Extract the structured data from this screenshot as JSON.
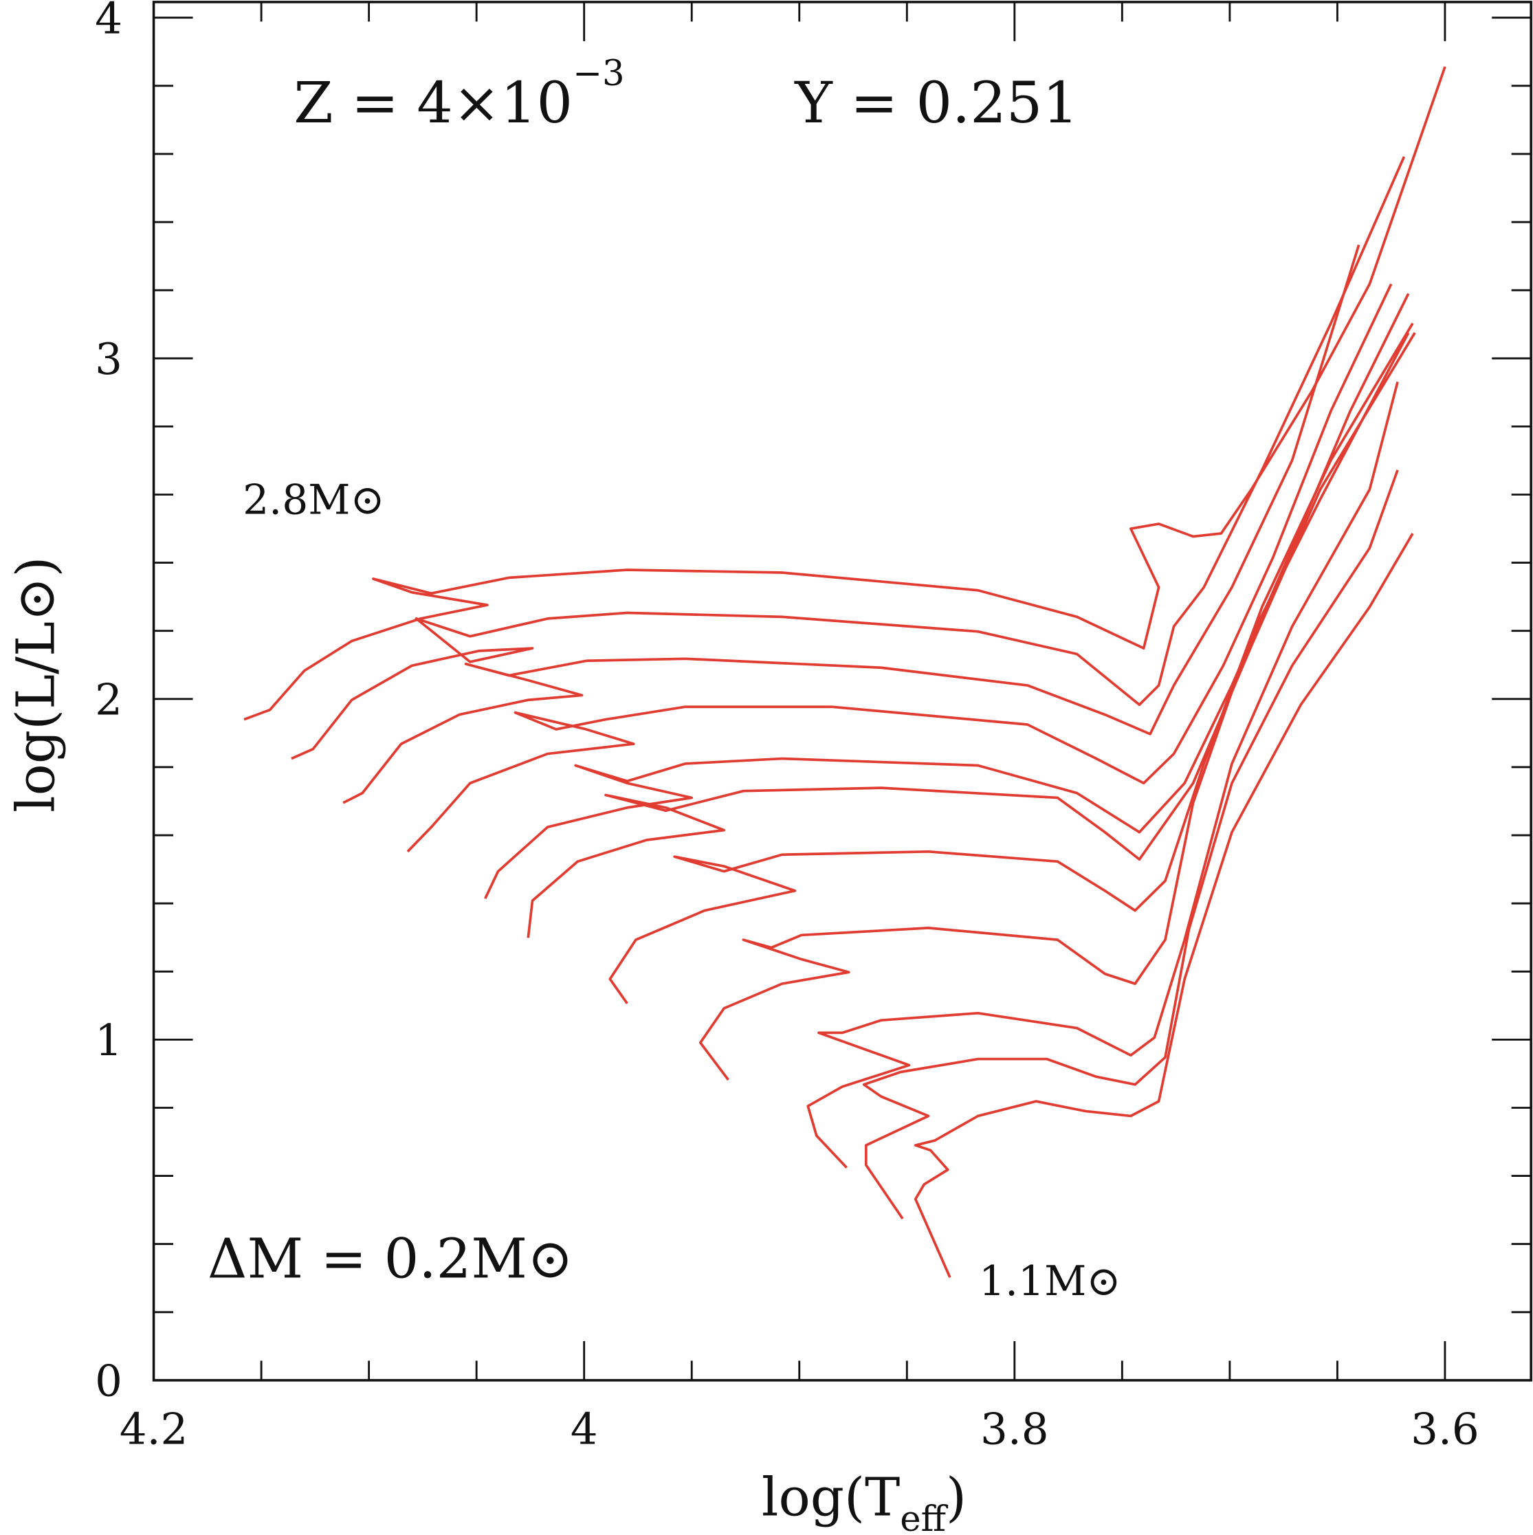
{
  "chart_data": {
    "type": "line",
    "xlabel": "log(T",
    "xlabel_sub": "eff",
    "xlabel_close": ")",
    "ylabel": "log(L/L⊙)",
    "xlim": [
      4.2,
      3.56
    ],
    "ylim": [
      0,
      4.046
    ],
    "x_reversed": true,
    "grid": false,
    "x_ticks": [
      "4.2",
      "4",
      "3.8",
      "3.6"
    ],
    "x_tick_values": [
      4.2,
      4.0,
      3.8,
      3.6
    ],
    "y_ticks": [
      "0",
      "1",
      "2",
      "3",
      "4"
    ],
    "y_tick_values": [
      0,
      1,
      2,
      3,
      4
    ],
    "line_color": "#e03c31",
    "annotations": {
      "z_text": "Z  =  4×10",
      "z_exp": "−3",
      "y_text": "Y  =  0.251",
      "top_mass": "2.8M⊙",
      "dm_text": "ΔM  =  0.2M⊙",
      "bottom_mass": "1.1M⊙"
    },
    "series": [
      {
        "points": [
          [
            4.158,
            1.94
          ],
          [
            4.146,
            1.968
          ],
          [
            4.13,
            2.083
          ],
          [
            4.108,
            2.17
          ],
          [
            4.076,
            2.236
          ],
          [
            4.045,
            2.276
          ],
          [
            4.08,
            2.313
          ],
          [
            4.098,
            2.353
          ],
          [
            4.071,
            2.31
          ],
          [
            4.035,
            2.356
          ],
          [
            3.98,
            2.379
          ],
          [
            3.908,
            2.371
          ],
          [
            3.817,
            2.319
          ],
          [
            3.771,
            2.241
          ],
          [
            3.74,
            2.149
          ],
          [
            3.733,
            2.328
          ],
          [
            3.746,
            2.5
          ],
          [
            3.733,
            2.514
          ],
          [
            3.717,
            2.477
          ],
          [
            3.704,
            2.486
          ],
          [
            3.69,
            2.615
          ],
          [
            3.662,
            2.902
          ],
          [
            3.635,
            3.218
          ],
          [
            3.6,
            3.856
          ]
        ]
      },
      {
        "points": [
          [
            4.136,
            1.825
          ],
          [
            4.126,
            1.853
          ],
          [
            4.108,
            1.997
          ],
          [
            4.08,
            2.098
          ],
          [
            4.049,
            2.141
          ],
          [
            4.024,
            2.149
          ],
          [
            4.053,
            2.109
          ],
          [
            4.078,
            2.236
          ],
          [
            4.053,
            2.184
          ],
          [
            4.017,
            2.236
          ],
          [
            3.98,
            2.253
          ],
          [
            3.908,
            2.241
          ],
          [
            3.817,
            2.198
          ],
          [
            3.771,
            2.132
          ],
          [
            3.742,
            1.983
          ],
          [
            3.733,
            2.04
          ],
          [
            3.726,
            2.213
          ],
          [
            3.712,
            2.328
          ],
          [
            3.685,
            2.672
          ],
          [
            3.653,
            3.103
          ],
          [
            3.619,
            3.592
          ]
        ]
      },
      {
        "points": [
          [
            4.112,
            1.695
          ],
          [
            4.103,
            1.724
          ],
          [
            4.085,
            1.868
          ],
          [
            4.058,
            1.954
          ],
          [
            4.026,
            1.997
          ],
          [
            4.001,
            2.011
          ],
          [
            4.026,
            2.055
          ],
          [
            4.055,
            2.103
          ],
          [
            4.035,
            2.069
          ],
          [
            3.999,
            2.112
          ],
          [
            3.953,
            2.118
          ],
          [
            3.862,
            2.092
          ],
          [
            3.794,
            2.04
          ],
          [
            3.758,
            1.954
          ],
          [
            3.737,
            1.897
          ],
          [
            3.726,
            2.04
          ],
          [
            3.699,
            2.328
          ],
          [
            3.671,
            2.701
          ],
          [
            3.64,
            3.333
          ]
        ]
      },
      {
        "points": [
          [
            4.082,
            1.552
          ],
          [
            4.071,
            1.624
          ],
          [
            4.053,
            1.753
          ],
          [
            4.017,
            1.839
          ],
          [
            3.977,
            1.868
          ],
          [
            3.999,
            1.911
          ],
          [
            4.032,
            1.96
          ],
          [
            4.013,
            1.911
          ],
          [
            3.99,
            1.94
          ],
          [
            3.953,
            1.977
          ],
          [
            3.885,
            1.977
          ],
          [
            3.794,
            1.925
          ],
          [
            3.762,
            1.825
          ],
          [
            3.74,
            1.753
          ],
          [
            3.726,
            1.839
          ],
          [
            3.703,
            2.098
          ],
          [
            3.68,
            2.414
          ],
          [
            3.653,
            2.845
          ],
          [
            3.625,
            3.218
          ]
        ]
      },
      {
        "points": [
          [
            4.046,
            1.414
          ],
          [
            4.04,
            1.494
          ],
          [
            4.017,
            1.624
          ],
          [
            3.98,
            1.681
          ],
          [
            3.95,
            1.71
          ],
          [
            3.98,
            1.753
          ],
          [
            4.004,
            1.805
          ],
          [
            3.98,
            1.759
          ],
          [
            3.953,
            1.81
          ],
          [
            3.908,
            1.825
          ],
          [
            3.817,
            1.805
          ],
          [
            3.771,
            1.724
          ],
          [
            3.742,
            1.609
          ],
          [
            3.721,
            1.753
          ],
          [
            3.699,
            2.04
          ],
          [
            3.671,
            2.443
          ],
          [
            3.644,
            2.845
          ],
          [
            3.617,
            3.19
          ]
        ]
      },
      {
        "points": [
          [
            4.026,
            1.299
          ],
          [
            4.024,
            1.408
          ],
          [
            4.003,
            1.523
          ],
          [
            3.971,
            1.586
          ],
          [
            3.935,
            1.615
          ],
          [
            3.962,
            1.681
          ],
          [
            3.99,
            1.718
          ],
          [
            3.962,
            1.672
          ],
          [
            3.926,
            1.73
          ],
          [
            3.862,
            1.739
          ],
          [
            3.78,
            1.71
          ],
          [
            3.758,
            1.609
          ],
          [
            3.742,
            1.529
          ],
          [
            3.717,
            1.753
          ],
          [
            3.69,
            2.155
          ],
          [
            3.658,
            2.615
          ],
          [
            3.614,
            3.075
          ]
        ]
      },
      {
        "points": [
          [
            3.98,
            1.106
          ],
          [
            3.988,
            1.178
          ],
          [
            3.976,
            1.293
          ],
          [
            3.944,
            1.379
          ],
          [
            3.902,
            1.437
          ],
          [
            3.935,
            1.509
          ],
          [
            3.958,
            1.537
          ],
          [
            3.935,
            1.494
          ],
          [
            3.908,
            1.543
          ],
          [
            3.84,
            1.552
          ],
          [
            3.78,
            1.523
          ],
          [
            3.758,
            1.437
          ],
          [
            3.744,
            1.379
          ],
          [
            3.73,
            1.466
          ],
          [
            3.712,
            1.81
          ],
          [
            3.685,
            2.27
          ],
          [
            3.653,
            2.701
          ],
          [
            3.615,
            3.103
          ]
        ]
      },
      {
        "points": [
          [
            3.933,
            0.882
          ],
          [
            3.946,
            0.991
          ],
          [
            3.935,
            1.092
          ],
          [
            3.908,
            1.164
          ],
          [
            3.877,
            1.198
          ],
          [
            3.899,
            1.236
          ],
          [
            3.926,
            1.293
          ],
          [
            3.913,
            1.27
          ],
          [
            3.899,
            1.307
          ],
          [
            3.84,
            1.328
          ],
          [
            3.78,
            1.293
          ],
          [
            3.758,
            1.193
          ],
          [
            3.744,
            1.164
          ],
          [
            3.73,
            1.293
          ],
          [
            3.717,
            1.695
          ],
          [
            3.69,
            2.184
          ],
          [
            3.658,
            2.586
          ],
          [
            3.617,
            3.075
          ]
        ]
      },
      {
        "points": [
          [
            3.878,
            0.624
          ],
          [
            3.892,
            0.718
          ],
          [
            3.896,
            0.805
          ],
          [
            3.88,
            0.862
          ],
          [
            3.849,
            0.925
          ],
          [
            3.872,
            0.977
          ],
          [
            3.891,
            1.02
          ],
          [
            3.88,
            1.02
          ],
          [
            3.862,
            1.057
          ],
          [
            3.817,
            1.078
          ],
          [
            3.771,
            1.034
          ],
          [
            3.746,
            0.954
          ],
          [
            3.735,
            1.006
          ],
          [
            3.721,
            1.293
          ],
          [
            3.699,
            1.81
          ],
          [
            3.671,
            2.213
          ],
          [
            3.635,
            2.615
          ],
          [
            3.622,
            2.931
          ]
        ]
      },
      {
        "points": [
          [
            3.852,
            0.474
          ],
          [
            3.869,
            0.632
          ],
          [
            3.869,
            0.69
          ],
          [
            3.84,
            0.776
          ],
          [
            3.862,
            0.833
          ],
          [
            3.87,
            0.868
          ],
          [
            3.853,
            0.905
          ],
          [
            3.817,
            0.943
          ],
          [
            3.785,
            0.943
          ],
          [
            3.762,
            0.891
          ],
          [
            3.744,
            0.868
          ],
          [
            3.73,
            0.948
          ],
          [
            3.719,
            1.322
          ],
          [
            3.699,
            1.753
          ],
          [
            3.671,
            2.098
          ],
          [
            3.635,
            2.443
          ],
          [
            3.622,
            2.672
          ]
        ]
      },
      {
        "points": [
          [
            3.83,
            0.302
          ],
          [
            3.846,
            0.532
          ],
          [
            3.842,
            0.575
          ],
          [
            3.831,
            0.618
          ],
          [
            3.839,
            0.675
          ],
          [
            3.846,
            0.69
          ],
          [
            3.837,
            0.704
          ],
          [
            3.817,
            0.776
          ],
          [
            3.79,
            0.819
          ],
          [
            3.767,
            0.79
          ],
          [
            3.746,
            0.776
          ],
          [
            3.733,
            0.819
          ],
          [
            3.721,
            1.178
          ],
          [
            3.699,
            1.609
          ],
          [
            3.667,
            1.983
          ],
          [
            3.635,
            2.27
          ],
          [
            3.615,
            2.486
          ]
        ]
      }
    ]
  }
}
